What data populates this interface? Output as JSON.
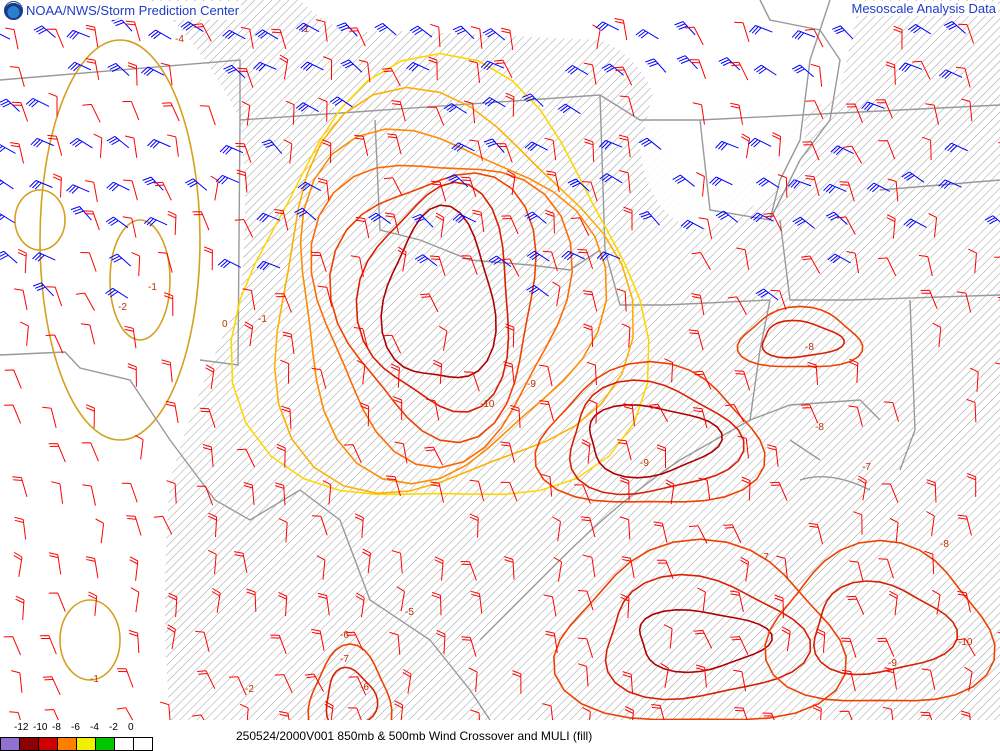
{
  "header": {
    "left_title": "NOAA/NWS/Storm Prediction Center",
    "right_title": "Mesoscale Analysis Data"
  },
  "legend": {
    "ticks": [
      "-12",
      "-10",
      "-8",
      "-6",
      "-4",
      "-2",
      "0"
    ],
    "colors": [
      "#9070d0",
      "#8b0000",
      "#d00000",
      "#ff8000",
      "#f0f000",
      "#00c800",
      "#ffffff",
      "#ffffff"
    ]
  },
  "caption": "250524/2000V001 850mb & 500mb Wind Crossover and MULI (fill)",
  "colors": {
    "barb_850mb": "#ff0000",
    "barb_500mb": "#0000ff",
    "hatch": "#888888",
    "borders": "#999999"
  },
  "contour_labels": [
    {
      "text": "-4"
    },
    {
      "text": "-1"
    },
    {
      "text": "-2"
    },
    {
      "text": "-1"
    },
    {
      "text": "0"
    },
    {
      "text": "-1"
    },
    {
      "text": "-6"
    },
    {
      "text": "-7"
    },
    {
      "text": "-10"
    },
    {
      "text": "-9"
    },
    {
      "text": "-8"
    },
    {
      "text": "-8"
    },
    {
      "text": "-7"
    },
    {
      "text": "-9"
    },
    {
      "text": "-10"
    },
    {
      "text": "-9"
    },
    {
      "text": "-8"
    },
    {
      "text": "-5"
    },
    {
      "text": "-6"
    },
    {
      "text": "-7"
    },
    {
      "text": "-1"
    },
    {
      "text": "-2"
    }
  ]
}
